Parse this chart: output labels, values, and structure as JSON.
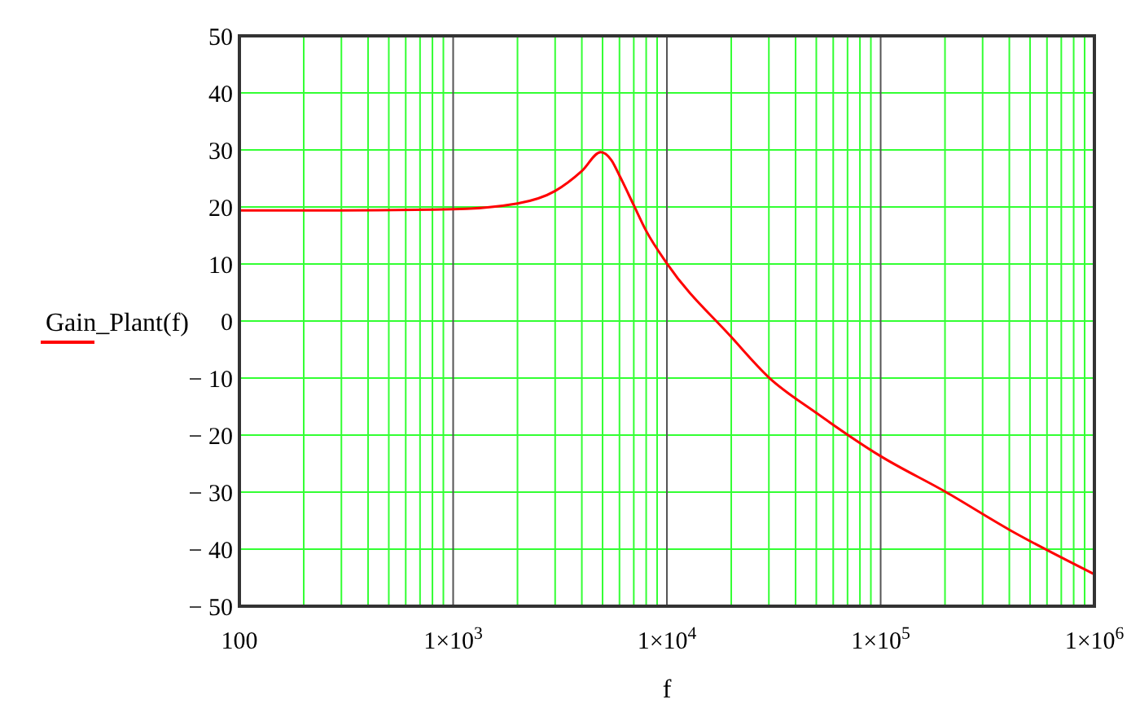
{
  "chart_data": {
    "type": "line",
    "xlabel": "f",
    "log": "x",
    "grid": true,
    "legend": "left",
    "marker": "none",
    "line_style": "solid",
    "xlim": [
      100,
      1000000
    ],
    "xticks": [
      100,
      {
        "value": 1000,
        "label": "1×10$^{3}$"
      },
      {
        "value": 10000,
        "label": "1×10$^{4}$"
      },
      {
        "value": 100000,
        "label": "1×10$^{5}$"
      },
      {
        "value": 1000000,
        "label": "1×10$^{6}$"
      }
    ],
    "ylim": [
      -50,
      50
    ],
    "yticks": [
      {
        "value": -50,
        "label": "− 50"
      },
      {
        "value": -40,
        "label": "− 40"
      },
      {
        "value": -30,
        "label": "− 30"
      },
      {
        "value": -20,
        "label": "− 20"
      },
      {
        "value": -10,
        "label": "− 10"
      },
      0,
      10,
      20,
      30,
      40,
      50
    ],
    "series": [
      {
        "name": "Gain_Plant(f)",
        "color": "#ff0000",
        "x": [
          100,
          300,
          1000,
          2000,
          3000,
          4000,
          4900,
          5500,
          6000,
          7000,
          8000,
          10000,
          20000,
          30000,
          50000,
          100000,
          200000,
          400000,
          1000000
        ],
        "values": [
          19.4,
          19.4,
          19.6,
          20.6,
          22.8,
          26.3,
          29.6,
          28.2,
          25.5,
          20.3,
          15.8,
          10.1,
          -2.8,
          -9.9,
          -16.1,
          -23.7,
          -29.9,
          -36.6,
          -44.4
        ]
      }
    ]
  }
}
